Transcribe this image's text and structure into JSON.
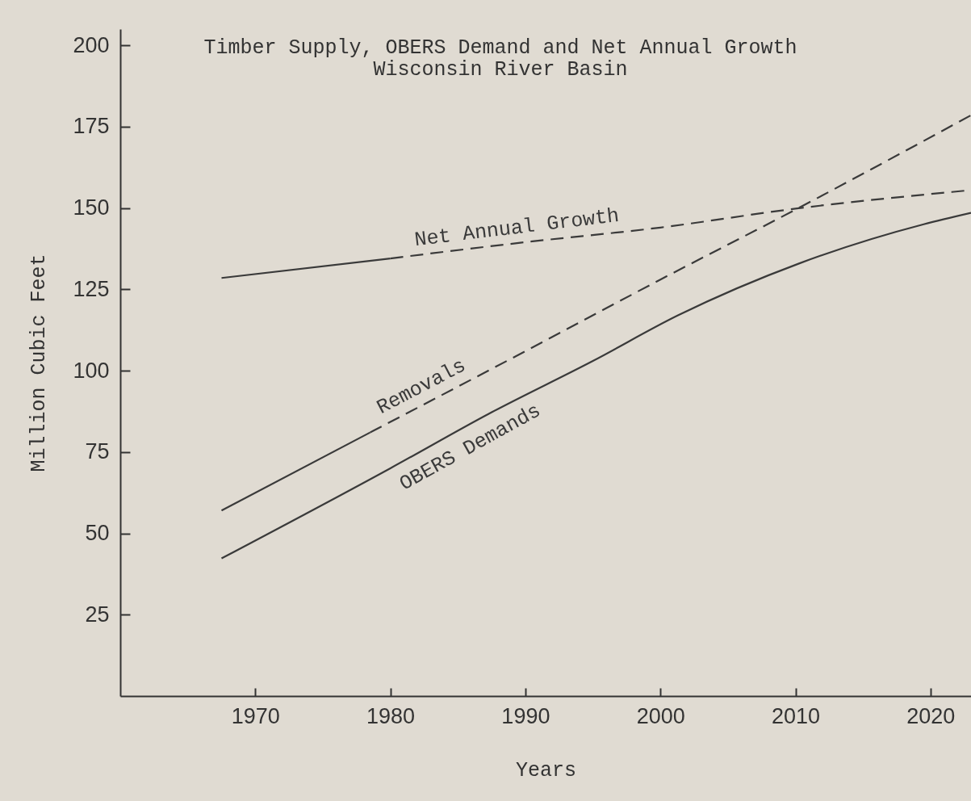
{
  "chart_data": {
    "type": "line",
    "title": "Timber Supply, OBERS Demand and Net Annual Growth",
    "subtitle": "Wisconsin River Basin",
    "xlabel": "Years",
    "ylabel": "Million Cubic Feet",
    "xlim": [
      1960,
      2023
    ],
    "xticks": [
      1970,
      1980,
      1990,
      2000,
      2010,
      2020
    ],
    "ylim": [
      0,
      205
    ],
    "yticks": [
      25,
      50,
      75,
      100,
      125,
      150,
      175,
      200
    ],
    "grid": false,
    "legend": false,
    "series": [
      {
        "color": "#3a3a3a",
        "line_style": "solid",
        "x": [
          1967.5,
          1980
        ],
        "values": [
          128.5,
          134.5
        ]
      },
      {
        "name": "Net Annual Growth",
        "color": "#3a3a3a",
        "line_style": "dashed",
        "x": [
          1980,
          1990,
          2000,
          2010,
          2023
        ],
        "values": [
          134.5,
          139.5,
          144,
          149.8,
          155.5
        ]
      },
      {
        "color": "#3a3a3a",
        "line_style": "solid",
        "x": [
          1967.5,
          1978.5
        ],
        "values": [
          57,
          81
        ]
      },
      {
        "name": "Removals",
        "color": "#3a3a3a",
        "line_style": "dashed",
        "x": [
          1978.5,
          1990,
          2000,
          2010,
          2023
        ],
        "values": [
          81,
          106,
          128,
          149.5,
          178.5
        ]
      },
      {
        "name": "OBERS Demands",
        "color": "#3a3a3a",
        "line_style": "solid",
        "x": [
          1967.5,
          1980,
          1987.4,
          1995,
          2001.3,
          2010.3,
          2019.5,
          2023
        ],
        "values": [
          42.3,
          70,
          87,
          103,
          117,
          133,
          145,
          148.5
        ]
      }
    ]
  }
}
